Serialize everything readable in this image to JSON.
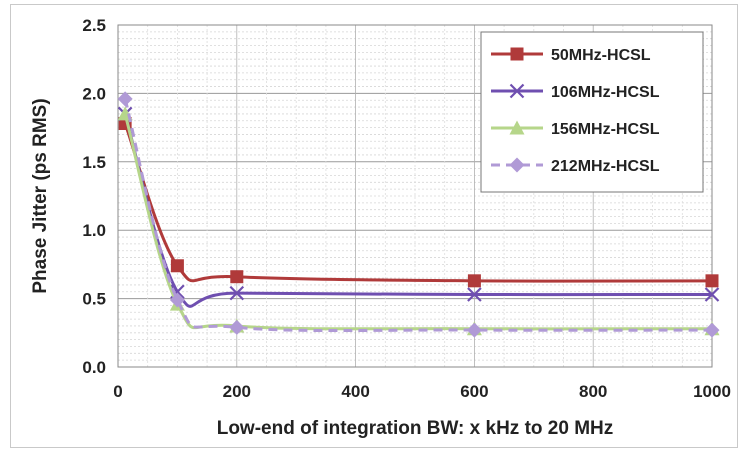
{
  "chart_data": {
    "type": "line",
    "xlabel": "Low-end of integration BW: x kHz to 20 MHz",
    "ylabel": "Phase Jitter (ps RMS)",
    "xlim": [
      0,
      1000
    ],
    "ylim": [
      0,
      2.5
    ],
    "xticks": [
      "0",
      "200",
      "400",
      "600",
      "800",
      "1000"
    ],
    "yticks": [
      "0.0",
      "0.5",
      "1.0",
      "1.5",
      "2.0",
      "2.5"
    ],
    "x": [
      12,
      100,
      200,
      600,
      1000
    ],
    "grid": true,
    "legend_position": "top-right",
    "series": [
      {
        "name": "50MHz-HCSL",
        "values": [
          1.78,
          0.74,
          0.66,
          0.63,
          0.63
        ],
        "color": "#b03a3a",
        "marker": "square",
        "dash": false
      },
      {
        "name": "106MHz-HCSL",
        "values": [
          1.85,
          0.55,
          0.54,
          0.53,
          0.53
        ],
        "color": "#6f4fb0",
        "marker": "x",
        "dash": false
      },
      {
        "name": "156MHz-HCSL",
        "values": [
          1.85,
          0.46,
          0.3,
          0.28,
          0.28
        ],
        "color": "#b6d68a",
        "marker": "triangle",
        "dash": false
      },
      {
        "name": "212MHz-HCSL",
        "values": [
          1.96,
          0.49,
          0.29,
          0.27,
          0.27
        ],
        "color": "#b09ad6",
        "marker": "diamond",
        "dash": true
      }
    ]
  }
}
